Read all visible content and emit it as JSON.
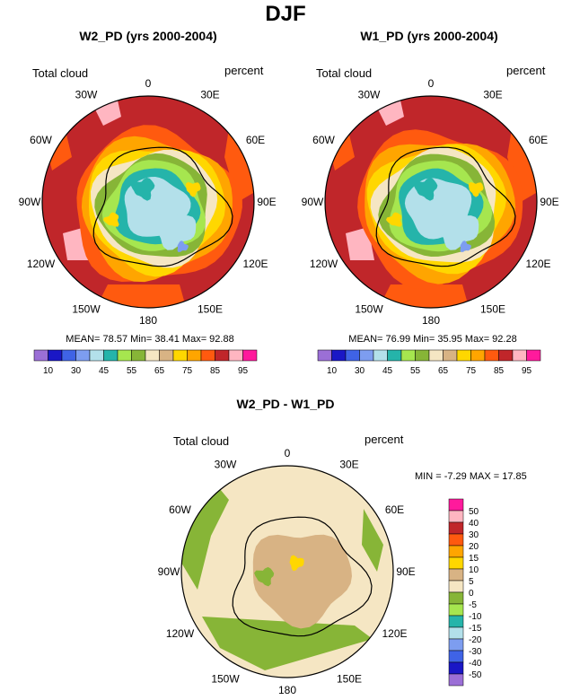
{
  "main_title": "DJF",
  "colors": {
    "palette": [
      "#9b6fd6",
      "#1a17c6",
      "#3f63e6",
      "#7d9df0",
      "#b3e0ea",
      "#25b4aa",
      "#a6e64f",
      "#87b537",
      "#f5e6c3",
      "#d8b384",
      "#ffd700",
      "#ffa500",
      "#ff5a0f",
      "#c0262a",
      "#ffb6c1",
      "#ff1a9c"
    ],
    "ocean": "#c0262a",
    "diff_ocean": "#f5e6c3"
  },
  "panels": [
    {
      "title": "W2_PD (yrs 2000-2004)",
      "variable": "Total cloud",
      "units": "percent",
      "stats": "MEAN= 78.57  Min= 38.41  Max= 92.88"
    },
    {
      "title": "W1_PD (yrs 2000-2004)",
      "variable": "Total cloud",
      "units": "percent",
      "stats": "MEAN= 76.99  Min= 35.95  Max= 92.28"
    }
  ],
  "lon_labels": [
    "0",
    "30E",
    "60E",
    "90E",
    "120E",
    "150E",
    "180",
    "150W",
    "120W",
    "90W",
    "60W",
    "30W"
  ],
  "colorbar_labels": [
    "10",
    "30",
    "45",
    "55",
    "65",
    "75",
    "85",
    "95"
  ],
  "diff": {
    "title": "W2_PD - W1_PD",
    "variable": "Total cloud",
    "units": "percent",
    "stats": "MIN =  -7.29 MAX =  17.85",
    "levels": [
      "50",
      "40",
      "30",
      "20",
      "15",
      "10",
      "5",
      "0",
      "-5",
      "-10",
      "-15",
      "-20",
      "-30",
      "-40",
      "-50"
    ],
    "colors": [
      "#ff1a9c",
      "#ffb6c1",
      "#c0262a",
      "#ff5a0f",
      "#ffa500",
      "#ffd700",
      "#d8b384",
      "#f5e6c3",
      "#87b537",
      "#a6e64f",
      "#25b4aa",
      "#b3e0ea",
      "#7d9df0",
      "#3f63e6",
      "#1a17c6",
      "#9b6fd6"
    ]
  }
}
